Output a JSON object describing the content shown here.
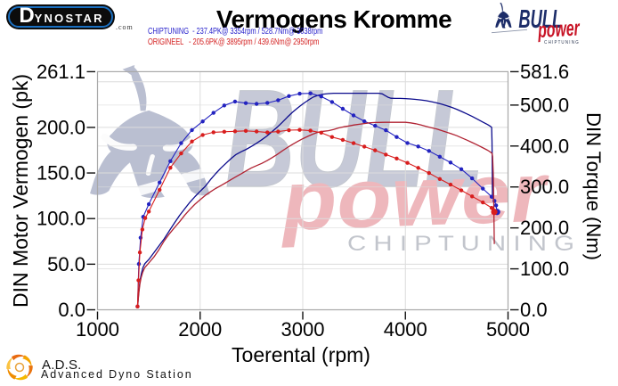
{
  "header": {
    "brand": "DYNOSTAR",
    "brand_suffix": ".com",
    "title": "Vermogens Kromme"
  },
  "tuner_logo": {
    "name": "BULL",
    "power": "power",
    "tagline": "C H I P   T U N I N G"
  },
  "legend": {
    "chiptuning": "CHIPTUNING  - 237.4PK@ 3354rpm / 528.7Nm@ 3038rpm",
    "origineel": "ORIGINEEL   - 205.6PK@ 3895rpm / 439.6Nm@ 2950rpm"
  },
  "footer": {
    "abbr": "A.D.S.",
    "name": "Advanced Dyno Station"
  },
  "colors": {
    "chip_power_line": "#0b0b8c",
    "chip_torque_dot": "#2323c0",
    "orig_power_line": "#b02232",
    "orig_torque_dot": "#d81e1e",
    "grid": "#dcdcdc",
    "border": "#a9a9a9",
    "tick": "#111111",
    "navy": "#1d2d69",
    "red": "#c81426"
  },
  "chart_data": {
    "type": "line",
    "title": "Vermogens Kromme",
    "xlabel": "Toerental (rpm)",
    "ylabel_left": "DIN Motor Vermogen (pk)",
    "ylabel_right": "DIN Torque (Nm)",
    "xlim": [
      1000,
      5000
    ],
    "ylim_left": [
      0,
      261.1
    ],
    "ylim_right": [
      0,
      581.6
    ],
    "x_tick_labels": [
      "1000",
      "2000",
      "3000",
      "4000",
      "5000"
    ],
    "left_tick_labels": [
      "0.0",
      "50.0",
      "100.0",
      "150.0",
      "200.0",
      "261.1"
    ],
    "right_tick_labels": [
      "0.0",
      "100.0",
      "200.0",
      "300.0",
      "400.0",
      "500.0",
      "581.6"
    ],
    "x_grid": [
      2000,
      3000,
      4000
    ],
    "left_grid": [
      50,
      100,
      150,
      200,
      250
    ],
    "right_grid": [
      100,
      200,
      300,
      400,
      500
    ],
    "legend_position": "top",
    "series": [
      {
        "name": "CHIPTUNING vermogen",
        "axis": "left",
        "style": "solid",
        "color": "#0b0b8c",
        "peak": "237.4PK@ 3354rpm",
        "points": [
          [
            1390,
            1.6
          ],
          [
            1398,
            14.9
          ],
          [
            1406,
            24
          ],
          [
            1416,
            32.7
          ],
          [
            1428,
            39.9
          ],
          [
            1443,
            46.4
          ],
          [
            1462,
            50.6
          ],
          [
            1500,
            55.1
          ],
          [
            1550,
            62.7
          ],
          [
            1600,
            70.4
          ],
          [
            1650,
            77.8
          ],
          [
            1700,
            86.7
          ],
          [
            1750,
            95.2
          ],
          [
            1800,
            103.5
          ],
          [
            1850,
            110.9
          ],
          [
            1900,
            117.9
          ],
          [
            1950,
            124.1
          ],
          [
            2000,
            129.9
          ],
          [
            2050,
            135.4
          ],
          [
            2100,
            142.6
          ],
          [
            2150,
            149.1
          ],
          [
            2200,
            155.1
          ],
          [
            2250,
            160.5
          ],
          [
            2300,
            165.7
          ],
          [
            2350,
            170.3
          ],
          [
            2400,
            173.3
          ],
          [
            2450,
            176
          ],
          [
            2500,
            179.2
          ],
          [
            2550,
            182.6
          ],
          [
            2600,
            186.4
          ],
          [
            2650,
            190.5
          ],
          [
            2700,
            195.3
          ],
          [
            2750,
            200.1
          ],
          [
            2800,
            205.5
          ],
          [
            2850,
            211.2
          ],
          [
            2900,
            216.6
          ],
          [
            2950,
            221.3
          ],
          [
            3000,
            225.7
          ],
          [
            3050,
            229.6
          ],
          [
            3100,
            233.1
          ],
          [
            3150,
            235.2
          ],
          [
            3200,
            236.5
          ],
          [
            3250,
            237.1
          ],
          [
            3300,
            237.4
          ],
          [
            3400,
            237.4
          ],
          [
            3500,
            237.4
          ],
          [
            3600,
            237.4
          ],
          [
            3700,
            237.4
          ],
          [
            3740,
            237.4
          ],
          [
            3775,
            236.8
          ],
          [
            3800,
            235
          ],
          [
            3830,
            233
          ],
          [
            3860,
            232
          ],
          [
            3900,
            231.8
          ],
          [
            3950,
            231.8
          ],
          [
            4000,
            231.6
          ],
          [
            4050,
            231.2
          ],
          [
            4100,
            230.7
          ],
          [
            4150,
            230.1
          ],
          [
            4200,
            229.3
          ],
          [
            4250,
            228.3
          ],
          [
            4300,
            227.1
          ],
          [
            4350,
            225.6
          ],
          [
            4400,
            223.9
          ],
          [
            4450,
            222
          ],
          [
            4500,
            219.8
          ],
          [
            4550,
            217.4
          ],
          [
            4600,
            214.8
          ],
          [
            4650,
            212
          ],
          [
            4700,
            209.1
          ],
          [
            4750,
            206.1
          ],
          [
            4800,
            203.1
          ],
          [
            4825,
            201.5
          ],
          [
            4840,
            200
          ],
          [
            4844,
            185
          ],
          [
            4846,
            160
          ],
          [
            4848,
            125
          ]
        ]
      },
      {
        "name": "CHIPTUNING koppel",
        "axis": "right",
        "style": "dotted",
        "color": "#2323c0",
        "peak": "528.7Nm@ 3038rpm",
        "points": [
          [
            1390,
            8
          ],
          [
            1403,
            112
          ],
          [
            1420,
            176
          ],
          [
            1445,
            227
          ],
          [
            1500,
            258
          ],
          [
            1605,
            311
          ],
          [
            1710,
            363
          ],
          [
            1815,
            407
          ],
          [
            1920,
            439
          ],
          [
            2025,
            460
          ],
          [
            2130,
            481
          ],
          [
            2235,
            499
          ],
          [
            2340,
            508.5
          ],
          [
            2445,
            504.8
          ],
          [
            2550,
            503
          ],
          [
            2655,
            505.2
          ],
          [
            2760,
            511.8
          ],
          [
            2865,
            522
          ],
          [
            2970,
            527.8
          ],
          [
            3075,
            528.6
          ],
          [
            3180,
            521
          ],
          [
            3285,
            507.5
          ],
          [
            3390,
            491
          ],
          [
            3495,
            474.7
          ],
          [
            3600,
            460.5
          ],
          [
            3705,
            449.5
          ],
          [
            3810,
            438.6
          ],
          [
            3915,
            422
          ],
          [
            4020,
            407.4
          ],
          [
            4125,
            398.9
          ],
          [
            4230,
            387.9
          ],
          [
            4335,
            373.8
          ],
          [
            4440,
            359.6
          ],
          [
            4545,
            343.3
          ],
          [
            4650,
            321
          ],
          [
            4755,
            295.9
          ],
          [
            4840,
            276
          ],
          [
            4868,
            266
          ],
          [
            4884,
            255
          ],
          [
            4893,
            239
          ]
        ]
      },
      {
        "name": "ORIGINEEL vermogen",
        "axis": "left",
        "style": "solid",
        "color": "#b02232",
        "peak": "205.6PK@ 3895rpm",
        "points": [
          [
            1390,
            1.6
          ],
          [
            1397,
            11.9
          ],
          [
            1404,
            20
          ],
          [
            1413,
            28.2
          ],
          [
            1424,
            34.9
          ],
          [
            1440,
            41
          ],
          [
            1460,
            46.1
          ],
          [
            1500,
            51.3
          ],
          [
            1550,
            58
          ],
          [
            1600,
            66.3
          ],
          [
            1650,
            75.6
          ],
          [
            1700,
            83.3
          ],
          [
            1750,
            90
          ],
          [
            1800,
            96.6
          ],
          [
            1850,
            103.8
          ],
          [
            1900,
            110.1
          ],
          [
            1950,
            115.8
          ],
          [
            2000,
            120.7
          ],
          [
            2050,
            125.4
          ],
          [
            2100,
            129.3
          ],
          [
            2150,
            132.9
          ],
          [
            2200,
            136.1
          ],
          [
            2250,
            139.3
          ],
          [
            2300,
            142.6
          ],
          [
            2350,
            145.9
          ],
          [
            2400,
            149.2
          ],
          [
            2450,
            152.4
          ],
          [
            2500,
            155.6
          ],
          [
            2550,
            158.1
          ],
          [
            2600,
            160.5
          ],
          [
            2650,
            163.4
          ],
          [
            2700,
            166.8
          ],
          [
            2750,
            170.3
          ],
          [
            2800,
            174.2
          ],
          [
            2850,
            177.9
          ],
          [
            2900,
            181.4
          ],
          [
            2950,
            184.6
          ],
          [
            3000,
            187.6
          ],
          [
            3050,
            190.2
          ],
          [
            3100,
            192.7
          ],
          [
            3150,
            194.7
          ],
          [
            3200,
            195.7
          ],
          [
            3250,
            196.4
          ],
          [
            3300,
            197.8
          ],
          [
            3350,
            199.4
          ],
          [
            3400,
            200.7
          ],
          [
            3450,
            201.6
          ],
          [
            3500,
            202.6
          ],
          [
            3550,
            203.4
          ],
          [
            3600,
            204.2
          ],
          [
            3650,
            205
          ],
          [
            3700,
            205.4
          ],
          [
            3750,
            205.5
          ],
          [
            3800,
            205.6
          ],
          [
            3895,
            205.6
          ],
          [
            3950,
            205.6
          ],
          [
            4000,
            205.6
          ],
          [
            4050,
            205
          ],
          [
            4100,
            204
          ],
          [
            4150,
            202.7
          ],
          [
            4200,
            201.2
          ],
          [
            4250,
            199.7
          ],
          [
            4300,
            198.4
          ],
          [
            4350,
            196.6
          ],
          [
            4400,
            194.8
          ],
          [
            4450,
            193
          ],
          [
            4500,
            190.9
          ],
          [
            4550,
            188.5
          ],
          [
            4600,
            186
          ],
          [
            4650,
            183.4
          ],
          [
            4700,
            180.7
          ],
          [
            4750,
            177.9
          ],
          [
            4800,
            175
          ],
          [
            4830,
            172.8
          ],
          [
            4845,
            171.5
          ],
          [
            4850,
            168
          ],
          [
            4856,
            150
          ],
          [
            4862,
            110
          ],
          [
            4866,
            72
          ]
        ]
      },
      {
        "name": "ORIGINEEL koppel",
        "axis": "right",
        "style": "dotted",
        "color": "#d81e1e",
        "peak": "439.6Nm@ 2950rpm",
        "points": [
          [
            1390,
            8
          ],
          [
            1399,
            72
          ],
          [
            1413,
            140
          ],
          [
            1437,
            196
          ],
          [
            1465,
            224
          ],
          [
            1500,
            240
          ],
          [
            1605,
            293
          ],
          [
            1710,
            347
          ],
          [
            1815,
            382
          ],
          [
            1920,
            411
          ],
          [
            2025,
            427
          ],
          [
            2130,
            433.5
          ],
          [
            2235,
            434.8
          ],
          [
            2340,
            435.9
          ],
          [
            2445,
            437
          ],
          [
            2550,
            435.5
          ],
          [
            2655,
            433.1
          ],
          [
            2760,
            435.2
          ],
          [
            2865,
            438.7
          ],
          [
            2970,
            439.4
          ],
          [
            3075,
            437.5
          ],
          [
            3180,
            432.5
          ],
          [
            3285,
            422
          ],
          [
            3390,
            415
          ],
          [
            3495,
            407
          ],
          [
            3600,
            398.5
          ],
          [
            3705,
            389.5
          ],
          [
            3810,
            379
          ],
          [
            3915,
            369.5
          ],
          [
            4020,
            358.8
          ],
          [
            4125,
            346.5
          ],
          [
            4230,
            334
          ],
          [
            4335,
            319.5
          ],
          [
            4440,
            305.8
          ],
          [
            4545,
            291.7
          ],
          [
            4650,
            277
          ],
          [
            4755,
            262.3
          ],
          [
            4840,
            249
          ],
          [
            4858,
            243
          ],
          [
            4866,
            239
          ]
        ]
      }
    ]
  }
}
